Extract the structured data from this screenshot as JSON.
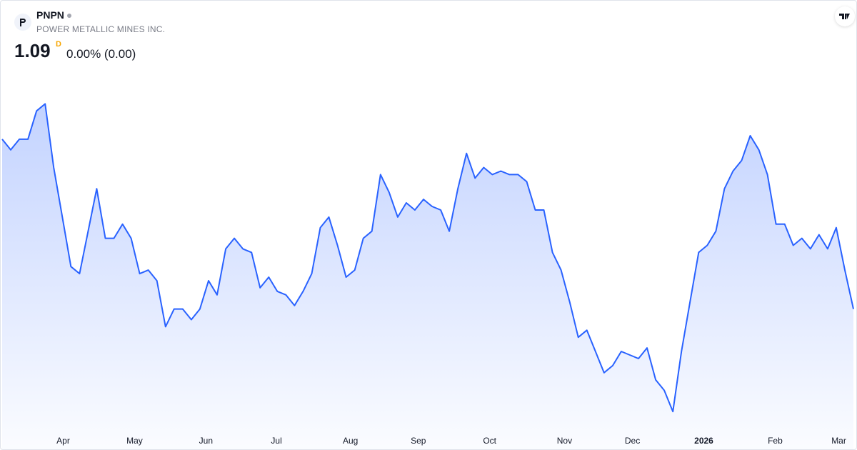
{
  "header": {
    "symbol": "PNPN",
    "company": "POWER METALLIC MINES INC.",
    "price": "1.09",
    "interval": "D",
    "change": "0.00% (0.00)"
  },
  "chart_data": {
    "type": "area",
    "color": "#2962ff",
    "xlim": [
      0,
      99
    ],
    "ylim": [
      0.75,
      1.8
    ],
    "xticks": [
      {
        "value": 7.1,
        "label": "Apr"
      },
      {
        "value": 15.4,
        "label": "May"
      },
      {
        "value": 23.7,
        "label": "Jun"
      },
      {
        "value": 31.9,
        "label": "Jul"
      },
      {
        "value": 40.5,
        "label": "Aug"
      },
      {
        "value": 48.4,
        "label": "Sep"
      },
      {
        "value": 56.7,
        "label": "Oct"
      },
      {
        "value": 65.4,
        "label": "Nov"
      },
      {
        "value": 73.3,
        "label": "Dec"
      },
      {
        "value": 81.6,
        "label": "2026"
      },
      {
        "value": 89.9,
        "label": "Feb"
      },
      {
        "value": 97.3,
        "label": "Mar"
      }
    ],
    "values": [
      1.57,
      1.54,
      1.57,
      1.57,
      1.65,
      1.67,
      1.49,
      1.35,
      1.21,
      1.19,
      1.31,
      1.43,
      1.29,
      1.29,
      1.33,
      1.29,
      1.19,
      1.2,
      1.17,
      1.04,
      1.09,
      1.09,
      1.06,
      1.09,
      1.17,
      1.13,
      1.26,
      1.29,
      1.26,
      1.25,
      1.15,
      1.18,
      1.14,
      1.13,
      1.1,
      1.14,
      1.19,
      1.32,
      1.35,
      1.27,
      1.18,
      1.2,
      1.29,
      1.31,
      1.47,
      1.42,
      1.35,
      1.39,
      1.37,
      1.4,
      1.38,
      1.37,
      1.31,
      1.43,
      1.53,
      1.46,
      1.49,
      1.47,
      1.48,
      1.47,
      1.47,
      1.45,
      1.37,
      1.37,
      1.25,
      1.2,
      1.11,
      1.01,
      1.03,
      0.97,
      0.91,
      0.93,
      0.97,
      0.96,
      0.95,
      0.98,
      0.89,
      0.86,
      0.8,
      0.97,
      1.11,
      1.25,
      1.27,
      1.31,
      1.43,
      1.48,
      1.51,
      1.58,
      1.54,
      1.47,
      1.33,
      1.33,
      1.27,
      1.29,
      1.26,
      1.3,
      1.26,
      1.32,
      1.2,
      1.09
    ]
  }
}
